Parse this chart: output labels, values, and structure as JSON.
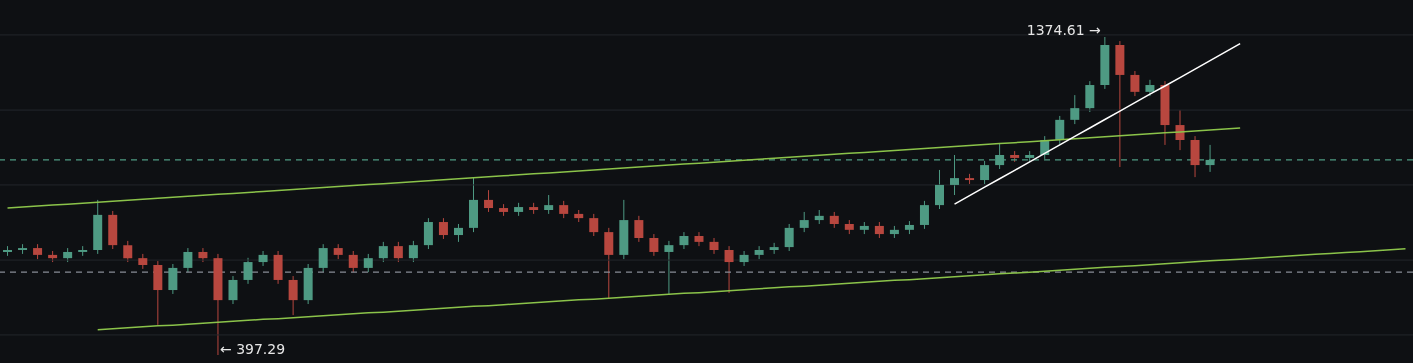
{
  "chart_data": {
    "type": "candlestick",
    "categories": [
      null,
      null,
      null,
      null,
      null,
      null,
      null,
      null,
      null,
      null,
      null,
      null,
      null,
      null,
      null,
      null,
      null,
      null,
      null,
      null,
      null,
      null,
      null,
      null,
      null,
      null,
      null,
      null,
      null,
      null,
      null,
      null,
      null,
      null,
      null,
      null,
      null,
      null,
      null,
      null,
      null,
      null,
      null,
      null,
      null,
      null,
      null,
      null,
      null,
      null,
      null,
      null,
      null,
      null,
      null,
      null,
      null,
      null,
      null,
      null,
      null,
      null,
      null,
      null,
      null,
      null,
      null,
      null,
      null,
      null,
      null,
      null,
      null,
      null,
      null,
      null,
      null,
      null,
      null,
      null,
      null,
      null,
      null,
      null,
      null,
      null,
      null,
      null,
      null,
      null,
      null,
      null,
      null,
      null
    ],
    "ohlc": [
      [
        714,
        732,
        702,
        720
      ],
      [
        720,
        738,
        708,
        726
      ],
      [
        726,
        738,
        692,
        705
      ],
      [
        705,
        717,
        683,
        695
      ],
      [
        695,
        726,
        683,
        714
      ],
      [
        714,
        732,
        702,
        720
      ],
      [
        720,
        874,
        708,
        828
      ],
      [
        828,
        840,
        723,
        735
      ],
      [
        735,
        748,
        683,
        695
      ],
      [
        695,
        708,
        662,
        674
      ],
      [
        674,
        686,
        490,
        597
      ],
      [
        597,
        677,
        585,
        665
      ],
      [
        665,
        726,
        652,
        714
      ],
      [
        714,
        726,
        683,
        695
      ],
      [
        695,
        708,
        397.29,
        566
      ],
      [
        566,
        640,
        554,
        628
      ],
      [
        628,
        696,
        616,
        683
      ],
      [
        683,
        717,
        671,
        705
      ],
      [
        705,
        717,
        616,
        628
      ],
      [
        628,
        640,
        520,
        566
      ],
      [
        566,
        677,
        554,
        665
      ],
      [
        665,
        738,
        652,
        726
      ],
      [
        726,
        738,
        692,
        705
      ],
      [
        705,
        717,
        652,
        665
      ],
      [
        665,
        708,
        652,
        695
      ],
      [
        695,
        745,
        683,
        732
      ],
      [
        732,
        745,
        683,
        695
      ],
      [
        695,
        748,
        683,
        735
      ],
      [
        735,
        818,
        723,
        806
      ],
      [
        806,
        818,
        754,
        766
      ],
      [
        766,
        800,
        745,
        788
      ],
      [
        788,
        944,
        775,
        874
      ],
      [
        874,
        904,
        837,
        849
      ],
      [
        849,
        861,
        825,
        837
      ],
      [
        837,
        865,
        825,
        852
      ],
      [
        852,
        865,
        831,
        843
      ],
      [
        843,
        889,
        831,
        858
      ],
      [
        858,
        871,
        818,
        831
      ],
      [
        831,
        843,
        806,
        818
      ],
      [
        818,
        831,
        763,
        775
      ],
      [
        775,
        788,
        572,
        705
      ],
      [
        705,
        874,
        692,
        812
      ],
      [
        812,
        825,
        745,
        757
      ],
      [
        757,
        769,
        702,
        714
      ],
      [
        714,
        748,
        582,
        735
      ],
      [
        735,
        775,
        723,
        763
      ],
      [
        763,
        775,
        732,
        745
      ],
      [
        745,
        757,
        708,
        720
      ],
      [
        720,
        732,
        588,
        683
      ],
      [
        683,
        717,
        671,
        705
      ],
      [
        705,
        732,
        692,
        720
      ],
      [
        720,
        742,
        708,
        729
      ],
      [
        729,
        800,
        717,
        788
      ],
      [
        788,
        837,
        775,
        812
      ],
      [
        812,
        843,
        800,
        825
      ],
      [
        825,
        837,
        788,
        800
      ],
      [
        800,
        812,
        769,
        782
      ],
      [
        782,
        806,
        769,
        794
      ],
      [
        794,
        806,
        757,
        769
      ],
      [
        769,
        794,
        757,
        782
      ],
      [
        782,
        809,
        769,
        797
      ],
      [
        797,
        871,
        785,
        858
      ],
      [
        858,
        966,
        846,
        920
      ],
      [
        920,
        1012,
        889,
        941
      ],
      [
        941,
        954,
        923,
        935
      ],
      [
        935,
        994,
        923,
        981
      ],
      [
        981,
        1049,
        969,
        1012
      ],
      [
        1012,
        1024,
        991,
        1003
      ],
      [
        1003,
        1024,
        991,
        1012
      ],
      [
        1012,
        1070,
        1000,
        1058
      ],
      [
        1058,
        1132,
        1046,
        1120
      ],
      [
        1120,
        1196,
        1107,
        1156
      ],
      [
        1156,
        1239,
        1144,
        1227
      ],
      [
        1227,
        1374.61,
        1215,
        1350
      ],
      [
        1350,
        1362,
        975,
        1258
      ],
      [
        1258,
        1270,
        1193,
        1206
      ],
      [
        1206,
        1243,
        1193,
        1227
      ],
      [
        1227,
        1239,
        1043,
        1104
      ],
      [
        1104,
        1150,
        1027,
        1058
      ],
      [
        1058,
        1070,
        944,
        981
      ],
      [
        981,
        1043,
        960,
        997
      ],
      null,
      null,
      null,
      null,
      null,
      null,
      null,
      null,
      null,
      null,
      null,
      null,
      null
    ],
    "colors": [
      "#4e9a83",
      "#4e9a83",
      "#b8473f",
      "#b8473f",
      "#4e9a83",
      "#4e9a83",
      "#4e9a83",
      "#b8473f",
      "#b8473f",
      "#b8473f",
      "#b8473f",
      "#4e9a83",
      "#4e9a83",
      "#b8473f",
      "#b8473f",
      "#4e9a83",
      "#4e9a83",
      "#4e9a83",
      "#b8473f",
      "#b8473f",
      "#4e9a83",
      "#4e9a83",
      "#b8473f",
      "#b8473f",
      "#4e9a83",
      "#4e9a83",
      "#b8473f",
      "#4e9a83",
      "#4e9a83",
      "#b8473f",
      "#4e9a83",
      "#4e9a83",
      "#b8473f",
      "#b8473f",
      "#4e9a83",
      "#b8473f",
      "#4e9a83",
      "#b8473f",
      "#b8473f",
      "#b8473f",
      "#b8473f",
      "#4e9a83",
      "#b8473f",
      "#b8473f",
      "#4e9a83",
      "#4e9a83",
      "#b8473f",
      "#b8473f",
      "#b8473f",
      "#4e9a83",
      "#4e9a83",
      "#4e9a83",
      "#4e9a83",
      "#4e9a83",
      "#4e9a83",
      "#b8473f",
      "#b8473f",
      "#4e9a83",
      "#b8473f",
      "#4e9a83",
      "#4e9a83",
      "#4e9a83",
      "#4e9a83",
      "#4e9a83",
      "#b8473f",
      "#4e9a83",
      "#4e9a83",
      "#b8473f",
      "#4e9a83",
      "#4e9a83",
      "#4e9a83",
      "#4e9a83",
      "#4e9a83",
      "#4e9a83",
      "#b8473f",
      "#b8473f",
      "#4e9a83",
      "#b8473f",
      "#b8473f",
      "#b8473f",
      "#4e9a83",
      null,
      null,
      null,
      null,
      null,
      null,
      null,
      null,
      null,
      null,
      null,
      null,
      null
    ],
    "series": [
      {
        "type": "line",
        "color": "#8bc34a",
        "values": [
          849,
          852,
          855,
          858,
          861,
          864,
          867,
          870,
          873,
          876,
          879,
          882,
          885,
          888,
          891,
          894,
          897,
          900,
          903,
          906,
          909,
          912,
          915,
          918,
          921,
          924,
          927,
          930,
          933,
          936,
          939,
          942,
          945,
          948,
          951,
          954,
          957,
          960,
          963,
          966,
          969,
          972,
          975,
          978,
          981,
          984,
          987,
          990,
          993,
          996,
          999,
          1002,
          1005,
          1008,
          1011,
          1014,
          1017,
          1020,
          1023,
          1026,
          1029,
          1032,
          1035,
          1038,
          1041,
          1044,
          1047,
          1050,
          1053,
          1056,
          1059,
          1062,
          1065,
          1068,
          1071,
          1074,
          1077,
          1080,
          1083,
          1086,
          1089,
          1092,
          1095,
          null,
          null,
          null,
          null,
          null,
          null,
          null,
          null,
          null,
          null,
          null
        ]
      },
      {
        "type": "line",
        "color": "#8bc34a",
        "values": [
          null,
          null,
          null,
          null,
          null,
          null,
          475,
          478,
          481,
          484,
          487,
          489,
          492,
          495,
          498,
          501,
          504,
          507,
          509,
          512,
          515,
          518,
          521,
          524,
          527,
          529,
          532,
          535,
          538,
          541,
          544,
          547,
          549,
          552,
          555,
          558,
          561,
          564,
          567,
          569,
          572,
          575,
          578,
          581,
          584,
          587,
          589,
          592,
          595,
          598,
          601,
          604,
          607,
          609,
          612,
          615,
          618,
          621,
          624,
          627,
          629,
          632,
          635,
          638,
          641,
          644,
          647,
          649,
          652,
          655,
          658,
          661,
          664,
          667,
          669,
          672,
          675,
          678,
          681,
          684,
          687,
          689,
          692,
          695,
          698,
          701,
          704,
          707,
          709,
          712,
          715,
          718,
          721,
          724
        ]
      },
      {
        "type": "line",
        "color": "#ffffff",
        "values": [
          null,
          null,
          null,
          null,
          null,
          null,
          null,
          null,
          null,
          null,
          null,
          null,
          null,
          null,
          null,
          null,
          null,
          null,
          null,
          null,
          null,
          null,
          null,
          null,
          null,
          null,
          null,
          null,
          null,
          null,
          null,
          null,
          null,
          null,
          null,
          null,
          null,
          null,
          null,
          null,
          null,
          null,
          null,
          null,
          null,
          null,
          null,
          null,
          null,
          null,
          null,
          null,
          null,
          null,
          null,
          null,
          null,
          null,
          null,
          null,
          null,
          null,
          null,
          861,
          887,
          913,
          939,
          965,
          991,
          1017,
          1043,
          1069,
          1095,
          1121,
          1147,
          1173,
          1199,
          1224,
          1250,
          1276,
          1302,
          1328,
          1354,
          null,
          null,
          null,
          null,
          null,
          null,
          null,
          null,
          null,
          null,
          null
        ]
      }
    ],
    "ylim": [
      372.8,
      1488.3
    ],
    "yticks": [
      {
        "value": 1381,
        "label": null
      },
      {
        "value": 1150,
        "label": null
      },
      {
        "value": 920,
        "label": null
      },
      {
        "value": 689,
        "label": null
      },
      {
        "value": 459,
        "label": null
      }
    ],
    "grid": "y",
    "ref_lines": [
      {
        "axis": "y",
        "value": 997,
        "color": "#4e9a83",
        "line_style": "dashed"
      },
      {
        "axis": "y",
        "value": 652,
        "color": "#888c96",
        "line_style": "dashed"
      }
    ],
    "annotations": [
      "1374.61 →",
      "← 397.29"
    ]
  }
}
